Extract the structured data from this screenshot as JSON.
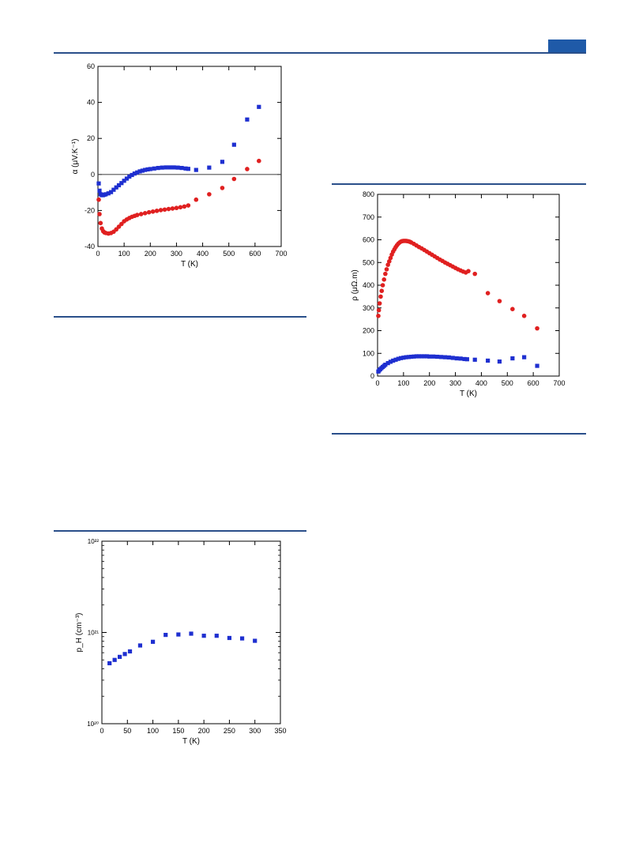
{
  "page": {
    "header_tab_color": "#1f5aa8",
    "rule_color": "#2a4f8a"
  },
  "chart_data": [
    {
      "id": "seebeck",
      "type": "scatter",
      "title": "",
      "xlabel": "T (K)",
      "ylabel": "α (μV.K⁻¹)",
      "xlim": [
        0,
        700
      ],
      "ylim": [
        -40,
        60
      ],
      "xticks": [
        0,
        100,
        200,
        300,
        400,
        500,
        600,
        700
      ],
      "yticks": [
        -40,
        -20,
        0,
        20,
        40,
        60
      ],
      "zero_line": true,
      "grid": false,
      "series": [
        {
          "color": "#1e2fd0",
          "marker": "square",
          "x": [
            3,
            6,
            10,
            15,
            20,
            25,
            30,
            40,
            50,
            60,
            70,
            80,
            90,
            100,
            110,
            120,
            130,
            140,
            150,
            160,
            170,
            180,
            190,
            200,
            215,
            230,
            245,
            260,
            275,
            290,
            305,
            320,
            335,
            345,
            375,
            425,
            475,
            520,
            570,
            615
          ],
          "y": [
            -5,
            -9,
            -11,
            -11.5,
            -11.5,
            -11.2,
            -11,
            -10.5,
            -9.8,
            -8.5,
            -7.2,
            -6,
            -4.8,
            -3.5,
            -2.3,
            -1.2,
            -0.3,
            0.5,
            1.1,
            1.7,
            2.1,
            2.5,
            2.8,
            3,
            3.3,
            3.6,
            3.8,
            3.9,
            3.9,
            3.9,
            3.8,
            3.6,
            3.3,
            3.1,
            2.5,
            3.8,
            7,
            16.5,
            30.5,
            37.5
          ]
        },
        {
          "color": "#e02020",
          "marker": "circle",
          "x": [
            3,
            6,
            10,
            15,
            20,
            25,
            30,
            40,
            50,
            60,
            70,
            80,
            90,
            100,
            110,
            120,
            130,
            140,
            150,
            165,
            180,
            195,
            210,
            225,
            240,
            255,
            270,
            285,
            300,
            315,
            330,
            345,
            375,
            425,
            475,
            520,
            570,
            615
          ],
          "y": [
            -14,
            -22,
            -27,
            -30,
            -31.5,
            -32.2,
            -32.5,
            -32.8,
            -32.5,
            -31.8,
            -30.5,
            -29,
            -27.5,
            -26,
            -25,
            -24.2,
            -23.5,
            -23,
            -22.5,
            -22,
            -21.5,
            -21,
            -20.6,
            -20.2,
            -19.8,
            -19.5,
            -19.2,
            -18.9,
            -18.6,
            -18.2,
            -17.8,
            -17.2,
            -14,
            -11,
            -7.5,
            -2.5,
            3,
            7.5
          ]
        }
      ]
    },
    {
      "id": "resistivity",
      "type": "scatter",
      "title": "",
      "xlabel": "T (K)",
      "ylabel": "ρ (μΩ.m)",
      "xlim": [
        0,
        700
      ],
      "ylim": [
        0,
        800
      ],
      "xticks": [
        0,
        100,
        200,
        300,
        400,
        500,
        600,
        700
      ],
      "yticks": [
        0,
        100,
        200,
        300,
        400,
        500,
        600,
        700,
        800
      ],
      "grid": false,
      "series": [
        {
          "color": "#e02020",
          "marker": "circle",
          "x": [
            3,
            5,
            8,
            12,
            16,
            20,
            25,
            30,
            35,
            40,
            45,
            50,
            55,
            60,
            65,
            70,
            75,
            80,
            85,
            90,
            95,
            100,
            105,
            110,
            115,
            120,
            125,
            130,
            140,
            150,
            160,
            170,
            180,
            190,
            200,
            210,
            220,
            230,
            240,
            250,
            260,
            270,
            280,
            290,
            300,
            310,
            320,
            330,
            340,
            350,
            375,
            425,
            470,
            520,
            565,
            615
          ],
          "y": [
            265,
            290,
            320,
            350,
            375,
            400,
            425,
            450,
            470,
            490,
            505,
            520,
            535,
            548,
            558,
            568,
            576,
            583,
            588,
            592,
            594,
            595,
            595,
            595,
            594,
            593,
            591,
            588,
            582,
            575,
            568,
            562,
            555,
            548,
            541,
            534,
            527,
            520,
            513,
            507,
            500,
            494,
            488,
            482,
            476,
            470,
            465,
            460,
            456,
            462,
            450,
            365,
            330,
            295,
            265,
            210
          ]
        },
        {
          "color": "#1e2fd0",
          "marker": "square",
          "x": [
            3,
            6,
            10,
            15,
            20,
            25,
            30,
            40,
            50,
            60,
            70,
            80,
            90,
            100,
            110,
            120,
            130,
            140,
            150,
            160,
            170,
            180,
            190,
            200,
            215,
            230,
            245,
            260,
            275,
            290,
            305,
            320,
            335,
            345,
            375,
            425,
            470,
            520,
            565,
            615
          ],
          "y": [
            20,
            25,
            30,
            35,
            40,
            45,
            50,
            57,
            63,
            68,
            72,
            76,
            79,
            81,
            83,
            84,
            85,
            86,
            87,
            87,
            87,
            87,
            87,
            86,
            86,
            85,
            84,
            83,
            82,
            80,
            78,
            77,
            75,
            74,
            72,
            68,
            64,
            78,
            83,
            45
          ]
        }
      ]
    },
    {
      "id": "hall",
      "type": "scatter",
      "title": "",
      "xlabel": "T (K)",
      "ylabel": "p_H (cm⁻³)",
      "xlim": [
        0,
        350
      ],
      "ylim": [
        1e+20,
        1e+22
      ],
      "yscale": "log",
      "xticks": [
        0,
        50,
        100,
        150,
        200,
        250,
        300,
        350
      ],
      "ytick_labels": [
        "10²⁰",
        "10²¹",
        "10²²"
      ],
      "grid": false,
      "series": [
        {
          "color": "#1e2fd0",
          "marker": "square",
          "x": [
            15,
            25,
            35,
            45,
            55,
            75,
            100,
            125,
            150,
            175,
            200,
            225,
            250,
            275,
            300
          ],
          "y": [
            4.6e+20,
            5e+20,
            5.4e+20,
            5.8e+20,
            6.2e+20,
            7.2e+20,
            7.9e+20,
            9.4e+20,
            9.5e+20,
            9.7e+20,
            9.2e+20,
            9.2e+20,
            8.7e+20,
            8.6e+20,
            8.1e+20
          ]
        }
      ]
    }
  ]
}
